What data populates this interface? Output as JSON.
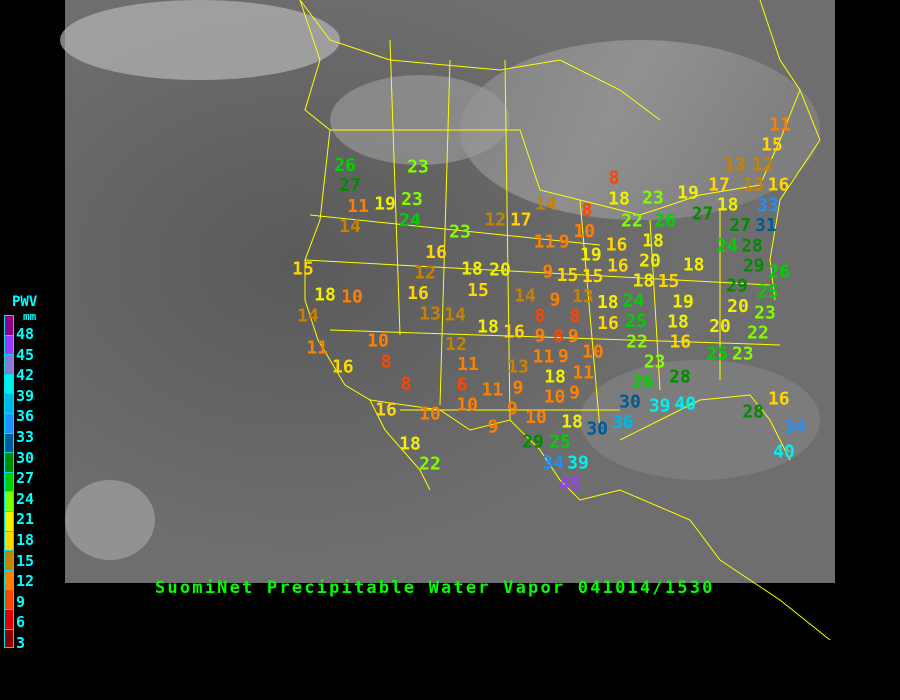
{
  "title": "SuomiNet Precipitable Water Vapor 041014/1530",
  "legend": {
    "title": "PWV",
    "unit": "mm",
    "labels": [
      "48",
      "45",
      "42",
      "39",
      "36",
      "33",
      "30",
      "27",
      "24",
      "21",
      "18",
      "15",
      "12",
      "9",
      "6",
      "3"
    ],
    "colors": [
      "#8c008c",
      "#9a3cff",
      "#8a78d8",
      "#00f0f0",
      "#00b8e8",
      "#2090ff",
      "#005a96",
      "#008c00",
      "#00d200",
      "#80ff00",
      "#f0f000",
      "#ffd700",
      "#c88200",
      "#ff8000",
      "#ff4400",
      "#dc0000",
      "#8c0000"
    ]
  },
  "stations": [
    26,
    27,
    14,
    11,
    19,
    23,
    24,
    23,
    23,
    15,
    18,
    10,
    14,
    11,
    16,
    10,
    8,
    8,
    16,
    18,
    22,
    10,
    16,
    12,
    16,
    18,
    20,
    15,
    13,
    14,
    14,
    9,
    15,
    15,
    9,
    13,
    18,
    16,
    18,
    16,
    8,
    8,
    9,
    9,
    8,
    12,
    11,
    9,
    10,
    11,
    6,
    11,
    13,
    18,
    11,
    9,
    10,
    9,
    10,
    9,
    10,
    9,
    18,
    29,
    25,
    30,
    36,
    34,
    39,
    45,
    30,
    26,
    28,
    23,
    16,
    25,
    23,
    39,
    40,
    28,
    16,
    34,
    40,
    18,
    16,
    19,
    16,
    20,
    18,
    18,
    15,
    19,
    24,
    25,
    22,
    18,
    20,
    20,
    22,
    23,
    25,
    29,
    26,
    11,
    15,
    13,
    12,
    13,
    16,
    8,
    18,
    23,
    19,
    17,
    18,
    33,
    31,
    27,
    22,
    26,
    24,
    27,
    28,
    29,
    8,
    10,
    11,
    9,
    17,
    12,
    14
  ]
}
